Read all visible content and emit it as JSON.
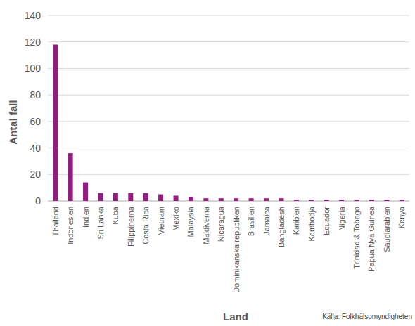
{
  "chart_data": {
    "type": "bar",
    "categories": [
      "Thailand",
      "Indonesien",
      "Indien",
      "Sri Lanka",
      "Kuba",
      "Filippinerna",
      "Costa Rica",
      "Vietnam",
      "Mexiko",
      "Malaysia",
      "Maldiverna",
      "Nicaragua",
      "Dominikanska republiken",
      "Brasilien",
      "Jamaica",
      "Bangladesh",
      "Karibien",
      "Kambodja",
      "Ecuador",
      "Nigeria",
      "Trinidad & Tobago",
      "Papua Nya Guinea",
      "Saudiarabien",
      "Kenya"
    ],
    "values": [
      118,
      36,
      14,
      6,
      6,
      6,
      6,
      5,
      4,
      3,
      2,
      2,
      2,
      2,
      2,
      2,
      1,
      1,
      1,
      1,
      1,
      1,
      1,
      1
    ],
    "color": "#941b80",
    "ylim": [
      0,
      140
    ],
    "yticks": [
      0,
      20,
      40,
      60,
      80,
      100,
      120,
      140
    ],
    "grid": true,
    "xlabel": "Land",
    "ylabel": "Antal fall",
    "source": "Källa: Folkhälsomyndigheten"
  }
}
